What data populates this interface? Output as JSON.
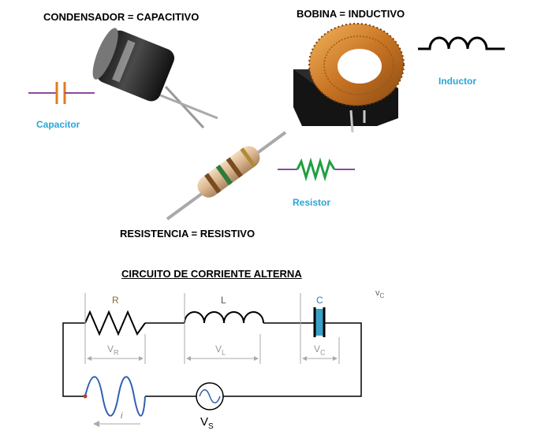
{
  "headings": {
    "capacitor": "CONDENSADOR = CAPACITIVO",
    "inductor": "BOBINA = INDUCTIVO",
    "resistor": "RESISTENCIA = RESISTIVO",
    "circuit": "CIRCUITO DE CORRIENTE ALTERNA"
  },
  "symbol_labels": {
    "capacitor": "Capacitor",
    "inductor": "Inductor",
    "resistor": "Resistor"
  },
  "circuit": {
    "r_label": "R",
    "l_label": "L",
    "c_label": "C",
    "vr_main": "V",
    "vr_sub": "R",
    "vl_main": "V",
    "vl_sub": "L",
    "vc_main": "V",
    "vc_sub": "C",
    "vc_corner_main": "v",
    "vc_corner_sub": "C",
    "current": "i",
    "vs_main": "V",
    "vs_sub": "S"
  },
  "colors": {
    "capacitor_symbol": "#e07b22",
    "lead_wire": "#8a4a9e",
    "resistor_symbol": "#20a040",
    "label_blue": "#2aa6d6",
    "circuit_capacitor": "#3aa0c8",
    "ac_wave": "#3060b0"
  }
}
